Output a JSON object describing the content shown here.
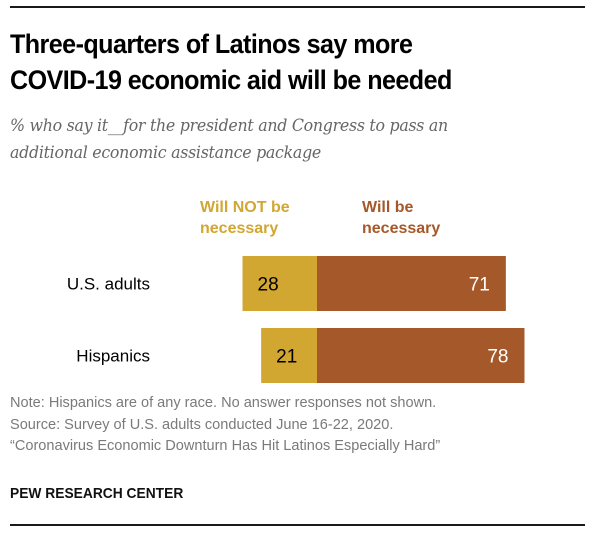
{
  "title_lines": [
    "Three-quarters of Latinos say more",
    "COVID-19 economic aid will be needed"
  ],
  "subtitle_lines": [
    "% who say it__for the president and Congress to pass an",
    "additional economic assistance package"
  ],
  "colors": {
    "not_necessary": "#D1A732",
    "necessary": "#A5592A",
    "label_text": "#000000",
    "value_text_dark": "#000000",
    "value_text_light": "#FFFFFF"
  },
  "chart_data": {
    "type": "bar",
    "orientation": "horizontal-stacked-diverging",
    "title": "Three-quarters of Latinos say more COVID-19 economic aid will be needed",
    "subtitle": "% who say it__for the president and Congress to pass an additional economic assistance package",
    "categories": [
      "U.S. adults",
      "Hispanics"
    ],
    "series": [
      {
        "name": "Will NOT be necessary",
        "name_lines": [
          "Will NOT be",
          "necessary"
        ],
        "color": "#D1A732",
        "values": [
          28,
          21
        ]
      },
      {
        "name": "Will be necessary",
        "name_lines": [
          "Will be",
          "necessary"
        ],
        "color": "#A5592A",
        "values": [
          71,
          78
        ]
      }
    ],
    "xlabel": "",
    "ylabel": "",
    "xlim": [
      0,
      100
    ],
    "grid": false,
    "legend": "top"
  },
  "notes": [
    "Note: Hispanics are of any race. No answer responses not shown.",
    "Source: Survey of U.S. adults conducted June 16-22, 2020.",
    "“Coronavirus Economic Downturn Has Hit Latinos Especially Hard”"
  ],
  "brand": "PEW RESEARCH CENTER"
}
